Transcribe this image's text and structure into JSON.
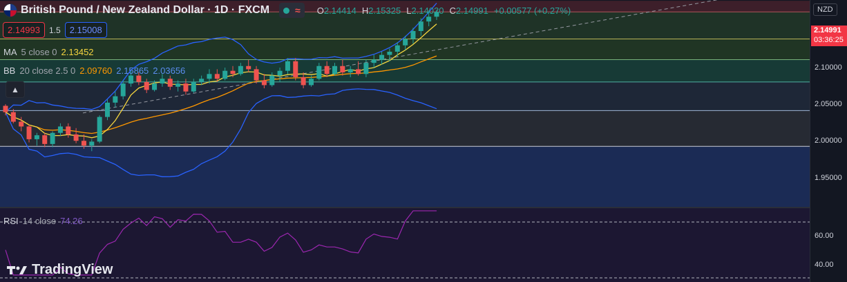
{
  "symbol": {
    "title": "British Pound / New Zealand Dollar · 1D · FXCM",
    "ohlc": [
      {
        "key": "O",
        "value": "2.14414"
      },
      {
        "key": "H",
        "value": "2.15325"
      },
      {
        "key": "L",
        "value": "2.14020"
      },
      {
        "key": "C",
        "value": "2.14991"
      }
    ],
    "change": "+0.00577 (+0.27%)"
  },
  "quote": {
    "sell": "2.14993",
    "spread": "1.5",
    "buy": "2.15008"
  },
  "indicators": {
    "ma": {
      "name": "MA",
      "params": "5 close 0",
      "value": "2.13452",
      "color": "#f5d53f"
    },
    "bb": {
      "name": "BB",
      "params": "20 close 2.5 0",
      "basis": "2.09760",
      "upper": "2.15865",
      "lower": "2.03656",
      "basis_color": "#ff9800",
      "band_color": "#2962ff"
    },
    "rsi": {
      "name": "RSI",
      "params": "14 close",
      "value": "74.26",
      "color": "#7e57c2"
    }
  },
  "price_axis": {
    "currency": "NZD",
    "labels": [
      "2.10000",
      "2.05000",
      "2.00000",
      "1.95000"
    ],
    "rsi_labels": [
      "60.00",
      "40.00"
    ],
    "last_price": "2.14991",
    "countdown": "03:36:25"
  },
  "brand": "TradingView",
  "colors": {
    "up": "#26a69a",
    "down": "#ef5350",
    "bg": "#131722"
  },
  "chart_data": {
    "type": "candlestick",
    "candles": [
      [
        2.032,
        2.034,
        2.02,
        2.024
      ],
      [
        2.024,
        2.028,
        2.01,
        2.012
      ],
      [
        2.012,
        2.018,
        2.0,
        2.006
      ],
      [
        2.006,
        2.008,
        1.986,
        1.99
      ],
      [
        1.99,
        1.998,
        1.982,
        1.995
      ],
      [
        1.995,
        1.998,
        1.98,
        1.984
      ],
      [
        1.984,
        2.0,
        1.98,
        1.998
      ],
      [
        1.998,
        2.01,
        1.994,
        2.006
      ],
      [
        2.006,
        2.01,
        1.992,
        1.996
      ],
      [
        1.996,
        2.004,
        1.985,
        1.988
      ],
      [
        1.988,
        1.996,
        1.978,
        1.982
      ],
      [
        1.982,
        1.99,
        1.975,
        1.987
      ],
      [
        1.987,
        2.02,
        1.985,
        2.018
      ],
      [
        2.018,
        2.04,
        2.014,
        2.036
      ],
      [
        2.036,
        2.05,
        2.03,
        2.044
      ],
      [
        2.044,
        2.064,
        2.04,
        2.06
      ],
      [
        2.06,
        2.076,
        2.056,
        2.07
      ],
      [
        2.07,
        2.074,
        2.058,
        2.062
      ],
      [
        2.062,
        2.066,
        2.048,
        2.052
      ],
      [
        2.052,
        2.064,
        2.05,
        2.06
      ],
      [
        2.06,
        2.072,
        2.056,
        2.066
      ],
      [
        2.066,
        2.07,
        2.052,
        2.056
      ],
      [
        2.056,
        2.064,
        2.05,
        2.06
      ],
      [
        2.06,
        2.066,
        2.046,
        2.05
      ],
      [
        2.05,
        2.066,
        2.048,
        2.062
      ],
      [
        2.062,
        2.07,
        2.058,
        2.066
      ],
      [
        2.066,
        2.078,
        2.06,
        2.072
      ],
      [
        2.072,
        2.078,
        2.062,
        2.066
      ],
      [
        2.066,
        2.08,
        2.064,
        2.076
      ],
      [
        2.076,
        2.082,
        2.068,
        2.072
      ],
      [
        2.072,
        2.086,
        2.07,
        2.082
      ],
      [
        2.082,
        2.09,
        2.074,
        2.078
      ],
      [
        2.078,
        2.082,
        2.06,
        2.064
      ],
      [
        2.064,
        2.072,
        2.054,
        2.058
      ],
      [
        2.058,
        2.074,
        2.056,
        2.07
      ],
      [
        2.07,
        2.08,
        2.062,
        2.076
      ],
      [
        2.076,
        2.092,
        2.072,
        2.088
      ],
      [
        2.088,
        2.092,
        2.064,
        2.068
      ],
      [
        2.068,
        2.074,
        2.054,
        2.058
      ],
      [
        2.058,
        2.07,
        2.056,
        2.066
      ],
      [
        2.066,
        2.086,
        2.064,
        2.082
      ],
      [
        2.082,
        2.088,
        2.068,
        2.072
      ],
      [
        2.072,
        2.086,
        2.07,
        2.082
      ],
      [
        2.082,
        2.09,
        2.07,
        2.074
      ],
      [
        2.074,
        2.082,
        2.068,
        2.078
      ],
      [
        2.078,
        2.088,
        2.07,
        2.072
      ],
      [
        2.072,
        2.09,
        2.068,
        2.086
      ],
      [
        2.086,
        2.096,
        2.08,
        2.09
      ],
      [
        2.09,
        2.1,
        2.084,
        2.096
      ],
      [
        2.096,
        2.104,
        2.088,
        2.1
      ],
      [
        2.1,
        2.112,
        2.094,
        2.108
      ],
      [
        2.108,
        2.12,
        2.102,
        2.116
      ],
      [
        2.116,
        2.13,
        2.11,
        2.126
      ],
      [
        2.126,
        2.142,
        2.12,
        2.138
      ],
      [
        2.138,
        2.152,
        2.132,
        2.144
      ],
      [
        2.144,
        2.153,
        2.14,
        2.15
      ]
    ],
    "ylim": [
      1.905,
      2.165
    ]
  }
}
